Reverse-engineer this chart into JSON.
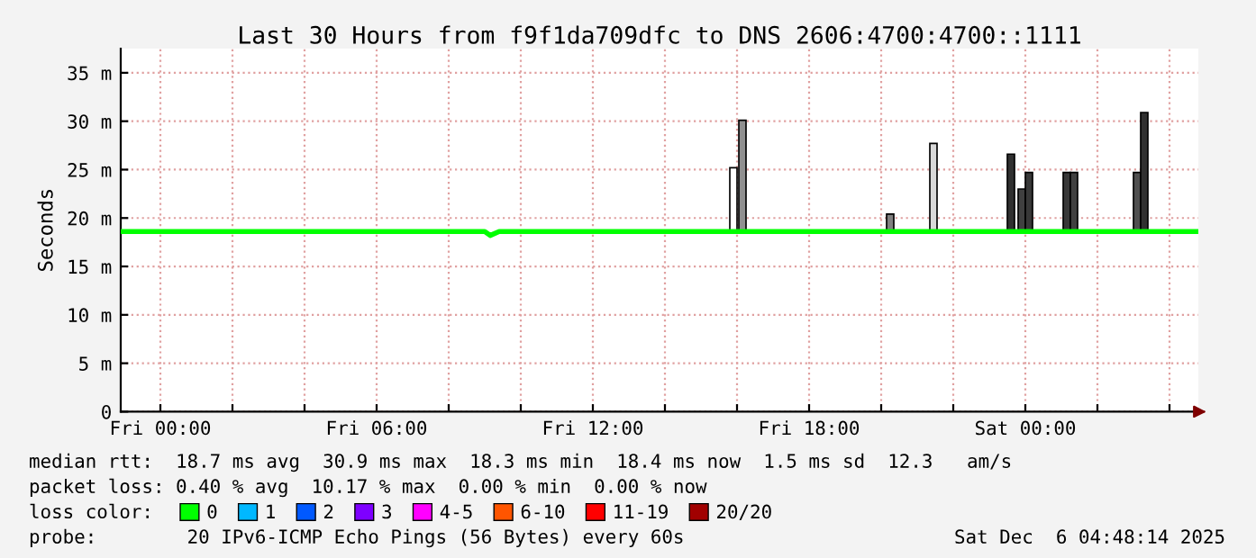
{
  "chart_data": {
    "type": "line",
    "title": "Last 30 Hours from f9f1da709dfc to DNS 2606:4700:4700::1111",
    "ylabel": "Seconds",
    "xlim": [
      "2025-12-04T22:54",
      "2025-12-06T04:48"
    ],
    "xticks": [
      {
        "value": "2025-12-05T00:00",
        "label": "Fri 00:00"
      },
      {
        "value": "2025-12-05T02:00",
        "label": null
      },
      {
        "value": "2025-12-05T04:00",
        "label": null
      },
      {
        "value": "2025-12-05T06:00",
        "label": "Fri 06:00"
      },
      {
        "value": "2025-12-05T08:00",
        "label": null
      },
      {
        "value": "2025-12-05T10:00",
        "label": null
      },
      {
        "value": "2025-12-05T12:00",
        "label": "Fri 12:00"
      },
      {
        "value": "2025-12-05T14:00",
        "label": null
      },
      {
        "value": "2025-12-05T16:00",
        "label": null
      },
      {
        "value": "2025-12-05T18:00",
        "label": "Fri 18:00"
      },
      {
        "value": "2025-12-05T20:00",
        "label": null
      },
      {
        "value": "2025-12-05T22:00",
        "label": null
      },
      {
        "value": "2025-12-06T00:00",
        "label": "Sat 00:00"
      },
      {
        "value": "2025-12-06T02:00",
        "label": null
      },
      {
        "value": "2025-12-06T04:00",
        "label": null
      }
    ],
    "ylim": [
      0,
      37.5
    ],
    "yticks": [
      {
        "value": 0,
        "label": "0"
      },
      {
        "value": 5,
        "label": "5 m"
      },
      {
        "value": 10,
        "label": "10 m"
      },
      {
        "value": 15,
        "label": "15 m"
      },
      {
        "value": 20,
        "label": "20 m"
      },
      {
        "value": 25,
        "label": "25 m"
      },
      {
        "value": 30,
        "label": "30 m"
      },
      {
        "value": 35,
        "label": "35 m"
      }
    ],
    "grid": true,
    "legend": "bottom left",
    "series": [
      {
        "type": "bar",
        "color": "#555555",
        "x": [
          "2025-12-05T15:54",
          "2025-12-05T16:09",
          "2025-12-05T20:15",
          "2025-12-05T21:27",
          "2025-12-05T23:36",
          "2025-12-05T23:54",
          "2025-12-06T00:06",
          "2025-12-06T01:09",
          "2025-12-06T01:21",
          "2025-12-06T03:06",
          "2025-12-06T03:18"
        ],
        "base": [
          18.6,
          18.6,
          18.6,
          18.6,
          18.6,
          18.6,
          18.6,
          18.6,
          18.6,
          18.6,
          18.6
        ],
        "values": [
          6.6,
          11.5,
          1.8,
          9.1,
          8.0,
          4.4,
          6.1,
          6.1,
          6.1,
          6.1,
          12.3
        ],
        "colors": [
          "#ffffff",
          "#909090",
          "#808080",
          "#d8d8d8",
          "#303030",
          "#404040",
          "#383838",
          "#383838",
          "#404040",
          "#505050",
          "#303030"
        ]
      },
      {
        "name": "0",
        "color": "#00ff00",
        "x": [
          "2025-12-04T22:54",
          "2025-12-05T09:00",
          "2025-12-05T09:09",
          "2025-12-05T09:24",
          "2025-12-06T04:48"
        ],
        "values": [
          18.6,
          18.6,
          18.2,
          18.6,
          18.6
        ]
      },
      {
        "name": "1",
        "color": "#00b8ff"
      },
      {
        "name": "2",
        "color": "#0059ff"
      },
      {
        "name": "3",
        "color": "#7e00ff"
      },
      {
        "name": "4-5",
        "color": "#ff00ff"
      },
      {
        "name": "6-10",
        "color": "#ff5500"
      },
      {
        "name": "11-19",
        "color": "#ff0000"
      },
      {
        "name": "20/20",
        "color": "#a10000"
      }
    ],
    "annotations": [
      "median rtt:  18.7 ms avg  30.9 ms max  18.3 ms min  18.4 ms now  1.5 ms sd  12.3   am/s",
      "packet loss: 0.40 % avg  10.17 % max  0.00 % min  0.00 % now",
      "loss color:",
      "probe:        20 IPv6-ICMP Echo Pings (56 Bytes) every 60s",
      "Sat Dec  6 04:48:14 2025"
    ]
  }
}
